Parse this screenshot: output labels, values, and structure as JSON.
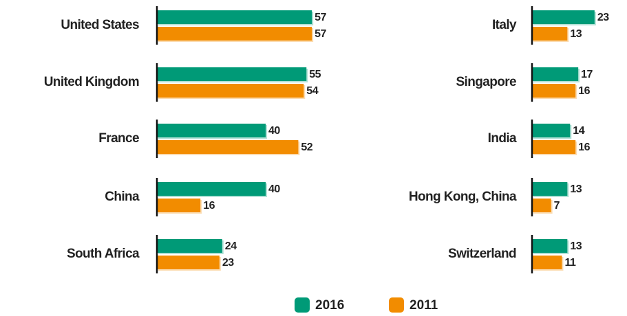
{
  "chart_data": [
    {
      "type": "bar",
      "categories": [
        "United States",
        "United Kingdom",
        "France",
        "China",
        "South Africa"
      ],
      "series": [
        {
          "name": "2016",
          "color": "#009a77",
          "values": [
            57,
            55,
            40,
            40,
            24
          ]
        },
        {
          "name": "2011",
          "color": "#f28c00",
          "values": [
            57,
            54,
            52,
            16,
            23
          ]
        }
      ]
    },
    {
      "type": "bar",
      "categories": [
        "Italy",
        "Singapore",
        "India",
        "Hong Kong, China",
        "Switzerland"
      ],
      "series": [
        {
          "name": "2016",
          "color": "#009a77",
          "values": [
            23,
            17,
            14,
            13,
            13
          ]
        },
        {
          "name": "2011",
          "color": "#f28c00",
          "values": [
            13,
            16,
            16,
            7,
            11
          ]
        }
      ]
    }
  ]
}
